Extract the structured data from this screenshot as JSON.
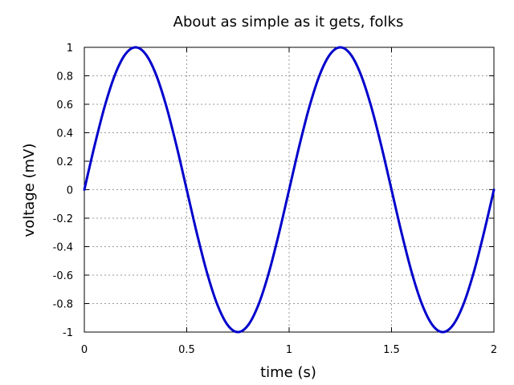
{
  "chart_data": {
    "type": "line",
    "title": "About as simple as it gets, folks",
    "xlabel": "time (s)",
    "ylabel": "voltage (mV)",
    "xlim": [
      0,
      2
    ],
    "ylim": [
      -1,
      1
    ],
    "xticks": [
      "0",
      "0.5",
      "1",
      "1.5",
      "2"
    ],
    "xtick_values": [
      0,
      0.5,
      1,
      1.5,
      2
    ],
    "yticks": [
      "1",
      "0.8",
      "0.6",
      "0.4",
      "0.2",
      "0",
      "-0.2",
      "-0.4",
      "-0.6",
      "-0.8",
      "-1"
    ],
    "ytick_values": [
      1,
      0.8,
      0.6,
      0.4,
      0.2,
      0,
      -0.2,
      -0.4,
      -0.6,
      -0.8,
      -1
    ],
    "grid": true,
    "series": [
      {
        "color": "#0000cc",
        "x": [
          0,
          0.05,
          0.1,
          0.15,
          0.2,
          0.25,
          0.3,
          0.35,
          0.4,
          0.45,
          0.5,
          0.55,
          0.6,
          0.65,
          0.7,
          0.75,
          0.8,
          0.85,
          0.9,
          0.95,
          1.0,
          1.05,
          1.1,
          1.15,
          1.2,
          1.25,
          1.3,
          1.35,
          1.4,
          1.45,
          1.5,
          1.55,
          1.6,
          1.65,
          1.7,
          1.75,
          1.8,
          1.85,
          1.9,
          1.95,
          2.0
        ],
        "y": [
          0,
          0.309,
          0.588,
          0.809,
          0.951,
          1.0,
          0.951,
          0.809,
          0.588,
          0.309,
          0,
          -0.309,
          -0.588,
          -0.809,
          -0.951,
          -1.0,
          -0.951,
          -0.809,
          -0.588,
          -0.309,
          0,
          0.309,
          0.588,
          0.809,
          0.951,
          1.0,
          0.951,
          0.809,
          0.588,
          0.309,
          0,
          -0.309,
          -0.588,
          -0.809,
          -0.951,
          -1.0,
          -0.951,
          -0.809,
          -0.588,
          -0.309,
          0
        ]
      }
    ]
  }
}
